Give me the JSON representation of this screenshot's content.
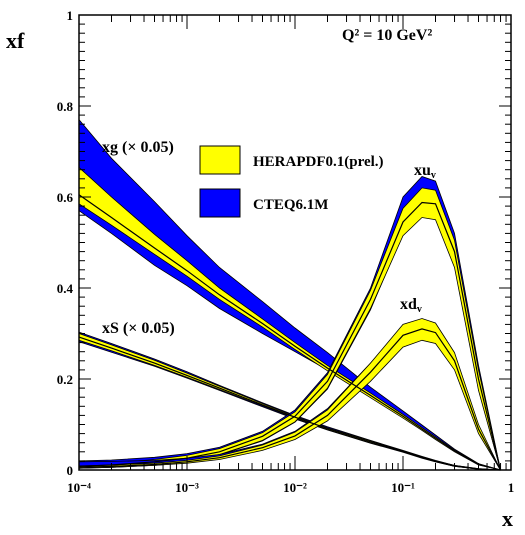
{
  "chart_data": {
    "type": "line",
    "title": "Q² = 10 GeV²",
    "xlabel": "x",
    "ylabel": "xf",
    "xscale": "log",
    "xlim": [
      0.0001,
      1
    ],
    "ylim": [
      0,
      1
    ],
    "x_tick_labels": [
      "10⁻⁴",
      "10⁻³",
      "10⁻²",
      "10⁻¹",
      "1"
    ],
    "y_tick_labels": [
      "0",
      "0.2",
      "0.4",
      "0.6",
      "0.8",
      "1"
    ],
    "legend": [
      {
        "label": "HERAPDF0.1(prel.)",
        "color": "#ffff00"
      },
      {
        "label": "CTEQ6.1M",
        "color": "#0000ff"
      }
    ],
    "annotations": {
      "xg": "xg (× 0.05)",
      "xS": "xS (× 0.05)",
      "xuv": "xu",
      "xuv_sub": "v",
      "xdv": "xd",
      "xdv_sub": "v"
    },
    "x": [
      0.0001,
      0.0002,
      0.0005,
      0.001,
      0.002,
      0.005,
      0.01,
      0.02,
      0.05,
      0.1,
      0.15,
      0.2,
      0.3,
      0.5,
      0.8
    ],
    "series": [
      {
        "name": "xg (× 0.05)",
        "hera_central": [
          0.605,
          0.555,
          0.488,
          0.438,
          0.385,
          0.322,
          0.272,
          0.224,
          0.164,
          0.118,
          0.09,
          0.07,
          0.042,
          0.012,
          0.0
        ],
        "hera_lower": [
          0.585,
          0.538,
          0.474,
          0.426,
          0.375,
          0.314,
          0.265,
          0.218,
          0.159,
          0.114,
          0.087,
          0.067,
          0.04,
          0.011,
          0.0
        ],
        "hera_upper": [
          0.665,
          0.6,
          0.518,
          0.46,
          0.4,
          0.332,
          0.28,
          0.23,
          0.169,
          0.122,
          0.093,
          0.073,
          0.044,
          0.013,
          0.0
        ],
        "cteq_lower": [
          0.57,
          0.52,
          0.45,
          0.405,
          0.355,
          0.3,
          0.26,
          0.22,
          0.166,
          0.121,
          0.093,
          0.072,
          0.043,
          0.012,
          0.0
        ],
        "cteq_upper": [
          0.77,
          0.685,
          0.59,
          0.515,
          0.445,
          0.37,
          0.312,
          0.258,
          0.182,
          0.13,
          0.099,
          0.077,
          0.046,
          0.014,
          0.0
        ]
      },
      {
        "name": "xS (× 0.05)",
        "hera_central": [
          0.292,
          0.268,
          0.235,
          0.208,
          0.18,
          0.143,
          0.116,
          0.091,
          0.062,
          0.041,
          0.028,
          0.019,
          0.009,
          0.002,
          0.0
        ],
        "hera_lower": [
          0.285,
          0.262,
          0.23,
          0.204,
          0.177,
          0.141,
          0.114,
          0.089,
          0.06,
          0.04,
          0.027,
          0.018,
          0.008,
          0.002,
          0.0
        ],
        "hera_upper": [
          0.3,
          0.275,
          0.241,
          0.213,
          0.184,
          0.146,
          0.118,
          0.093,
          0.064,
          0.042,
          0.029,
          0.02,
          0.01,
          0.003,
          0.0
        ],
        "cteq_lower": [
          0.282,
          0.259,
          0.228,
          0.202,
          0.175,
          0.139,
          0.112,
          0.088,
          0.059,
          0.039,
          0.026,
          0.018,
          0.008,
          0.002,
          0.0
        ],
        "cteq_upper": [
          0.303,
          0.278,
          0.244,
          0.216,
          0.186,
          0.148,
          0.12,
          0.095,
          0.065,
          0.043,
          0.03,
          0.021,
          0.01,
          0.003,
          0.0
        ]
      },
      {
        "name": "xu",
        "hera_central": [
          0.008,
          0.011,
          0.018,
          0.026,
          0.04,
          0.074,
          0.118,
          0.195,
          0.375,
          0.545,
          0.588,
          0.585,
          0.48,
          0.2,
          0.0
        ],
        "hera_lower": [
          0.005,
          0.008,
          0.014,
          0.021,
          0.034,
          0.065,
          0.106,
          0.18,
          0.355,
          0.515,
          0.555,
          0.55,
          0.445,
          0.175,
          0.0
        ],
        "hera_upper": [
          0.012,
          0.015,
          0.023,
          0.032,
          0.047,
          0.082,
          0.128,
          0.21,
          0.395,
          0.575,
          0.62,
          0.615,
          0.505,
          0.22,
          0.0
        ],
        "cteq_lower": [
          0.004,
          0.007,
          0.013,
          0.02,
          0.033,
          0.064,
          0.105,
          0.178,
          0.352,
          0.52,
          0.56,
          0.555,
          0.45,
          0.178,
          0.0
        ],
        "cteq_upper": [
          0.02,
          0.022,
          0.028,
          0.036,
          0.05,
          0.085,
          0.132,
          0.214,
          0.4,
          0.6,
          0.645,
          0.635,
          0.52,
          0.23,
          0.0
        ]
      },
      {
        "name": "xd",
        "hera_central": [
          0.006,
          0.008,
          0.012,
          0.018,
          0.027,
          0.049,
          0.075,
          0.12,
          0.215,
          0.296,
          0.31,
          0.302,
          0.24,
          0.09,
          0.0
        ],
        "hera_lower": [
          0.004,
          0.006,
          0.01,
          0.015,
          0.023,
          0.043,
          0.067,
          0.108,
          0.195,
          0.27,
          0.285,
          0.278,
          0.22,
          0.08,
          0.0
        ],
        "hera_upper": [
          0.009,
          0.011,
          0.015,
          0.021,
          0.031,
          0.055,
          0.083,
          0.132,
          0.235,
          0.32,
          0.333,
          0.323,
          0.258,
          0.1,
          0.0
        ],
        "cteq_lower": [
          0.004,
          0.006,
          0.01,
          0.016,
          0.024,
          0.044,
          0.068,
          0.11,
          0.198,
          0.275,
          0.288,
          0.28,
          0.222,
          0.082,
          0.0
        ],
        "cteq_upper": [
          0.018,
          0.019,
          0.021,
          0.026,
          0.034,
          0.057,
          0.085,
          0.135,
          0.235,
          0.316,
          0.327,
          0.318,
          0.252,
          0.097,
          0.0
        ]
      }
    ]
  }
}
